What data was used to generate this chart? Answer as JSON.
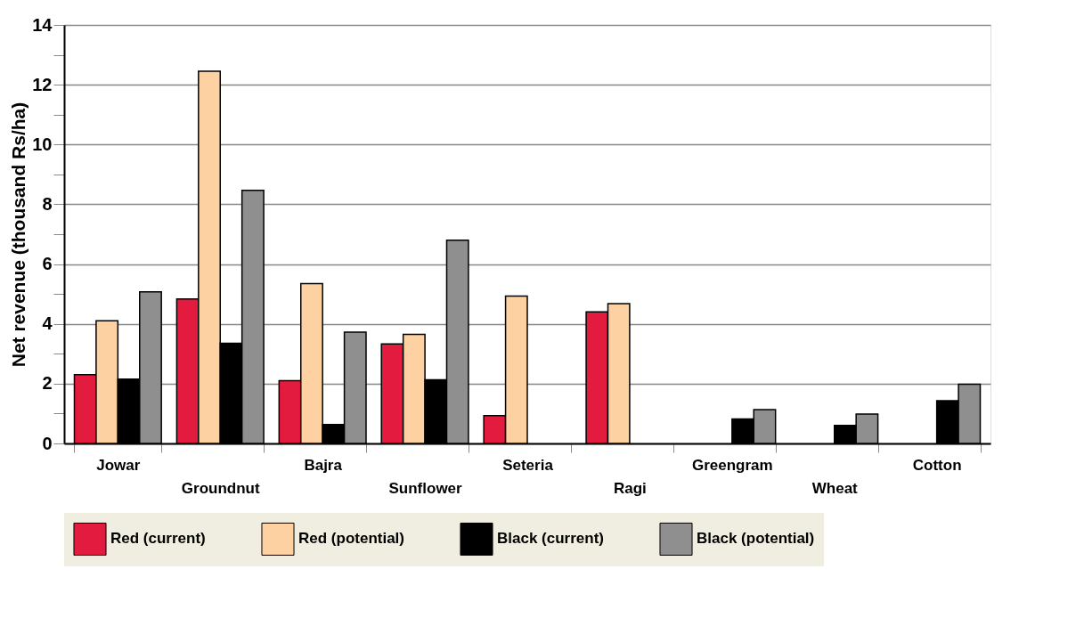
{
  "chart_data": {
    "type": "bar",
    "ylabel": "Net revenue (thousand Rs/ha)",
    "categories": [
      "Jowar",
      "Groundnut",
      "Bajra",
      "Sunflower",
      "Seteria",
      "Ragi",
      "Greengram",
      "Wheat",
      "Cotton"
    ],
    "series": [
      {
        "name": "Red (current)",
        "color": "#e31b3f",
        "values": [
          2.3,
          4.83,
          2.1,
          3.33,
          0.93,
          4.4,
          null,
          null,
          null
        ]
      },
      {
        "name": "Red (potential)",
        "color": "#fdd1a2",
        "values": [
          4.1,
          12.45,
          5.35,
          3.65,
          4.93,
          4.68,
          null,
          null,
          null
        ]
      },
      {
        "name": "Black (current)",
        "color": "#000000",
        "values": [
          2.15,
          3.35,
          0.63,
          2.13,
          null,
          null,
          0.82,
          0.6,
          1.43
        ]
      },
      {
        "name": "Black (potential)",
        "color": "#8f8f8f",
        "values": [
          5.07,
          8.47,
          3.72,
          6.8,
          null,
          null,
          1.13,
          0.98,
          1.98
        ]
      }
    ],
    "ylim": [
      0,
      14
    ],
    "yticks": [
      0,
      {
        "value": 1,
        "label": null
      },
      2,
      {
        "value": 3,
        "label": null
      },
      4,
      {
        "value": 5,
        "label": null
      },
      6,
      {
        "value": 7,
        "label": null
      },
      8,
      {
        "value": 9,
        "label": null
      },
      10,
      {
        "value": 11,
        "label": null
      },
      12,
      {
        "value": 13,
        "label": null
      },
      14
    ],
    "grid": "y",
    "legend": "bottom"
  }
}
